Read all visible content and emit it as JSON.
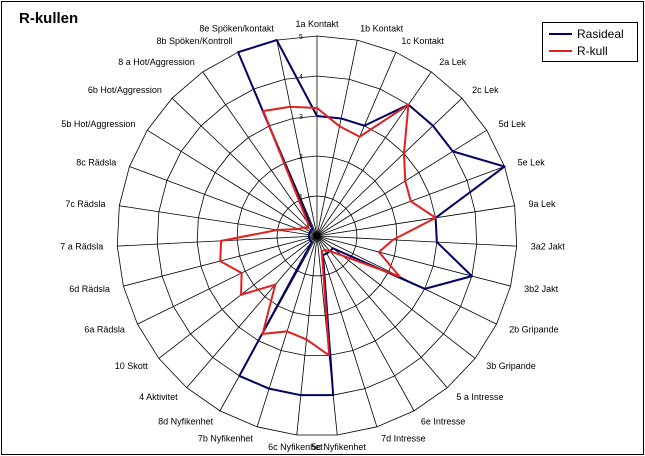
{
  "chart_data": {
    "type": "radar",
    "title": "R-kullen",
    "rlim": [
      0,
      5
    ],
    "rticks": [
      "1",
      "2",
      "3",
      "4",
      "5"
    ],
    "categories": [
      "1a Kontakt",
      "1b Kontakt",
      "1c Kontakt",
      "2a Lek",
      "2c Lek",
      "5d Lek",
      "5e Lek",
      "9a Lek",
      "3a2 Jakt",
      "3b2 Jakt",
      "2b Gripande",
      "3b Gripande",
      "5 a Intresse",
      "6e Intresse",
      "7d Intresse",
      "5c Nyfikenhet",
      "6c Nyfikenhet",
      "7b Nyfikenhet",
      "8d Nyfikenhet",
      "4 Aktivitet",
      "10 Skott",
      "6a Rädsla",
      "6d Rädsla",
      "7 a Rädsla",
      "7c Rädsla",
      "8c Rädsla",
      "5b Hot/Aggression",
      "6b Hot/Aggression",
      "8 a Hot/Aggression",
      "8b Spöken/Kontroll",
      "8e Spöken/kontakt"
    ],
    "series": [
      {
        "name": "Rasideal",
        "color": "#000066",
        "values": [
          3,
          3,
          3,
          4,
          4,
          4,
          5,
          3,
          3,
          4,
          3,
          0.5,
          0.5,
          0.5,
          0.5,
          4,
          4,
          4,
          4,
          0.2,
          0.2,
          0.2,
          0.2,
          0.2,
          0.2,
          0.2,
          0.2,
          0.2,
          0.2,
          5,
          5
        ]
      },
      {
        "name": "R-kull",
        "color": "#e41f1f",
        "values": [
          3.2,
          2.8,
          2.7,
          4,
          3,
          2.6,
          2.5,
          3,
          1.9,
          1.6,
          2.3,
          0.8,
          0.5,
          0.4,
          0.4,
          3,
          2.6,
          2.5,
          2.8,
          1.6,
          2.4,
          2.1,
          2.5,
          2.4,
          1,
          0.5,
          0.4,
          0.3,
          0.4,
          3.4,
          3.3
        ]
      }
    ],
    "grid": true,
    "legend": "top-right"
  }
}
